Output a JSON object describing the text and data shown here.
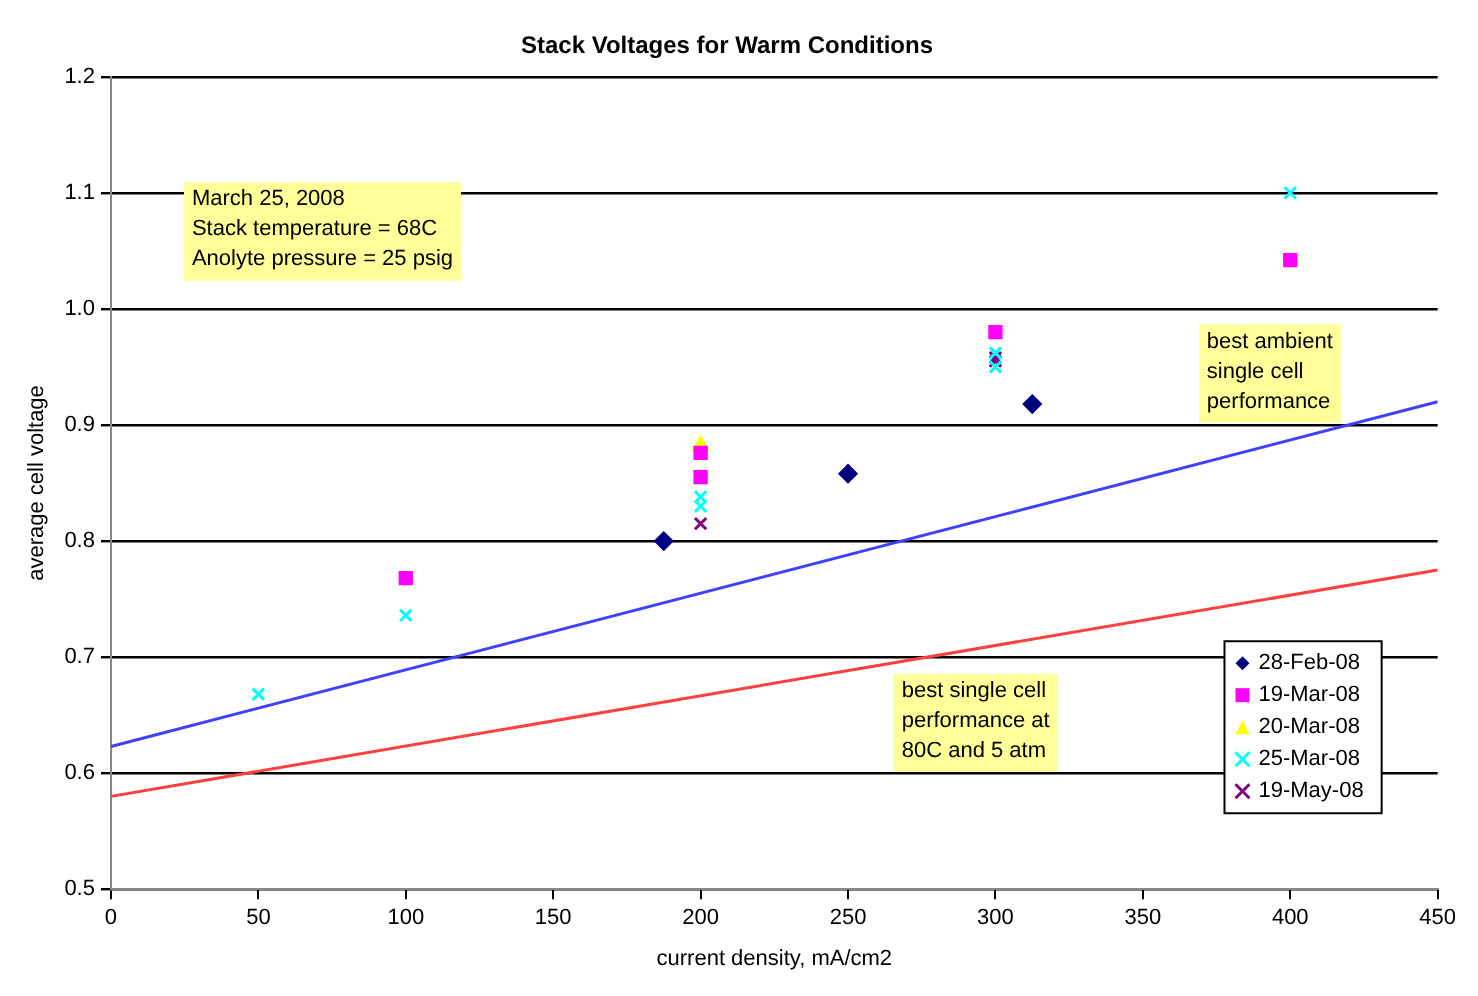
{
  "chart_data": {
    "type": "scatter",
    "title": "Stack Voltages for Warm Conditions",
    "xlabel": "current density, mA/cm2",
    "ylabel": "average cell voltage",
    "xlim": [
      0,
      450
    ],
    "xticks": [
      0,
      50,
      100,
      150,
      200,
      250,
      300,
      350,
      400,
      450
    ],
    "ylim": [
      0.5,
      1.2
    ],
    "yticks": [
      0.5,
      0.6,
      0.7,
      0.8,
      0.9,
      {
        "value": 1,
        "label": "1.0"
      },
      1.1,
      1.2
    ],
    "grid": "y",
    "legend": "bottom right",
    "series": [
      {
        "name": "28-Feb-08",
        "color": "#000080",
        "marker": "diamond",
        "x": [
          187.5,
          250,
          312.5
        ],
        "values": [
          0.8,
          0.858,
          0.918
        ]
      },
      {
        "name": "19-Mar-08",
        "color": "#ff00ff",
        "marker": "square",
        "x": [
          100,
          200,
          200,
          300,
          400
        ],
        "values": [
          0.768,
          0.876,
          0.855,
          0.98,
          1.042
        ]
      },
      {
        "name": "20-Mar-08",
        "color": "#ffff00",
        "marker": "triangle",
        "x": [
          200
        ],
        "values": [
          0.882
        ]
      },
      {
        "name": "25-Mar-08",
        "color": "#00ffff",
        "marker": "cross",
        "x": [
          50,
          100,
          200,
          200,
          300,
          300,
          400
        ],
        "values": [
          0.668,
          0.736,
          0.838,
          0.83,
          0.962,
          0.95,
          1.1
        ]
      },
      {
        "name": "19-May-08",
        "color": "#800080",
        "marker": "cross",
        "x": [
          200,
          300,
          300
        ],
        "values": [
          0.815,
          0.955,
          0.958
        ]
      },
      {
        "type": "line",
        "color": "#4040ff",
        "marker": "none",
        "x": [
          0,
          450
        ],
        "values": [
          0.623,
          0.92
        ]
      },
      {
        "type": "line",
        "color": "#ff4040",
        "marker": "none",
        "x": [
          0,
          450
        ],
        "values": [
          0.58,
          0.775
        ]
      }
    ],
    "annotations": [
      "March 25, 2008\nStack temperature = 68C\nAnolyte pressure = 25 psig",
      "best ambient\nsingle cell\nperformance",
      "best single cell\nperformance at\n80C and 5 atm"
    ]
  }
}
